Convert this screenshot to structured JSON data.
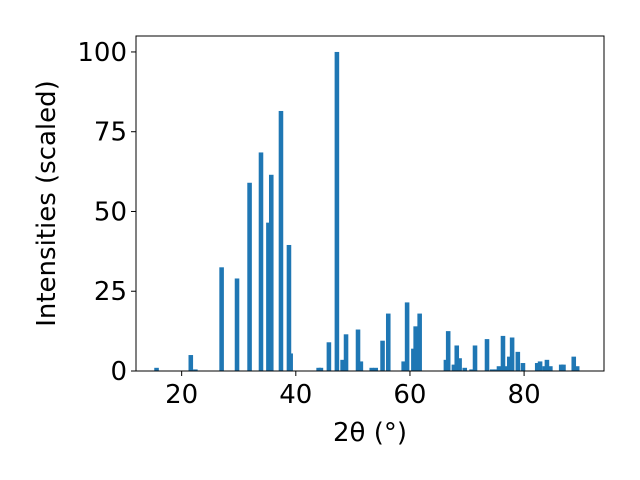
{
  "chart_data": {
    "type": "bar",
    "xlabel": "2θ (°)",
    "ylabel": "Intensities (scaled)",
    "xlim": [
      12,
      94
    ],
    "ylim": [
      0,
      105
    ],
    "xticks": [
      20,
      40,
      60,
      80
    ],
    "yticks": [
      0,
      25,
      50,
      75,
      100
    ],
    "grid": false,
    "bar_color": "#1f77b4",
    "bar_width": 0.8,
    "x": [
      15.6,
      21.6,
      22.4,
      27.0,
      29.7,
      31.9,
      33.9,
      35.2,
      35.7,
      37.4,
      38.8,
      39.1,
      44.0,
      44.4,
      45.8,
      47.2,
      48.2,
      48.8,
      50.9,
      51.4,
      53.3,
      54.0,
      55.2,
      56.2,
      58.9,
      59.5,
      60.6,
      61.0,
      61.7,
      66.3,
      66.7,
      67.7,
      68.2,
      68.7,
      69.6,
      70.8,
      71.4,
      73.5,
      74.4,
      75.1,
      75.6,
      76.3,
      76.7,
      77.4,
      77.9,
      78.9,
      79.8,
      82.3,
      82.8,
      83.6,
      84.0,
      84.6,
      86.5,
      86.9,
      88.7,
      89.3
    ],
    "values": [
      1,
      5,
      0.5,
      32.5,
      29,
      59,
      68.5,
      46.5,
      61.5,
      81.5,
      39.5,
      5.5,
      1,
      1,
      9,
      100,
      3.5,
      11.5,
      13,
      3,
      1,
      1,
      9.5,
      18,
      3,
      21.5,
      7,
      14,
      18,
      3.5,
      12.5,
      2,
      8,
      4,
      1,
      0.5,
      8,
      10,
      0.5,
      0.5,
      1.5,
      11,
      1.5,
      4.5,
      10.5,
      6,
      2.5,
      2.5,
      3,
      1.5,
      3.5,
      1.5,
      2,
      2,
      4.5,
      1.5
    ]
  }
}
